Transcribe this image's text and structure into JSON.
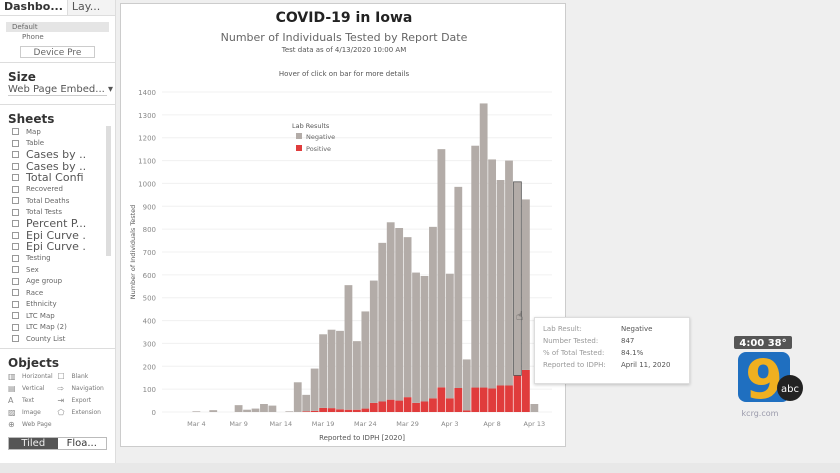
{
  "left_panel": {
    "tabs": [
      "Dashbo...",
      "Lay..."
    ],
    "devices": [
      "Default",
      "Phone"
    ],
    "device_preview_button": "Device Pre",
    "size_heading": "Size",
    "size_value": "Web Page Embed...",
    "sheets_heading": "Sheets",
    "sheets": [
      {
        "label": "Map",
        "big": false
      },
      {
        "label": "Table",
        "big": false
      },
      {
        "label": "Cases by ..",
        "big": true
      },
      {
        "label": "Cases by ..",
        "big": true
      },
      {
        "label": "Total Confi",
        "big": true
      },
      {
        "label": "Recovered",
        "big": false
      },
      {
        "label": "Total Deaths",
        "big": false
      },
      {
        "label": "Total Tests",
        "big": false
      },
      {
        "label": "Percent P...",
        "big": true
      },
      {
        "label": "Epi Curve .",
        "big": true
      },
      {
        "label": "Epi Curve .",
        "big": true
      },
      {
        "label": "Testing",
        "big": false
      },
      {
        "label": "Sex",
        "big": false
      },
      {
        "label": "Age group",
        "big": false
      },
      {
        "label": "Race",
        "big": false
      },
      {
        "label": "Ethnicity",
        "big": false
      },
      {
        "label": "LTC Map",
        "big": false
      },
      {
        "label": "LTC Map (2)",
        "big": false
      },
      {
        "label": "County List",
        "big": false
      }
    ],
    "objects_heading": "Objects",
    "objects": [
      {
        "label": "Horizontal",
        "icon": "▥"
      },
      {
        "label": "Blank",
        "icon": "☐"
      },
      {
        "label": "Vertical",
        "icon": "▤"
      },
      {
        "label": "Navigation",
        "icon": "⇨"
      },
      {
        "label": "Text",
        "icon": "A"
      },
      {
        "label": "Export",
        "icon": "⇥"
      },
      {
        "label": "Image",
        "icon": "▨"
      },
      {
        "label": "Extension",
        "icon": "⬠"
      },
      {
        "label": "Web Page",
        "icon": "⊕"
      }
    ],
    "layout_toggle": [
      "Tiled",
      "Floa..."
    ]
  },
  "dashboard": {
    "title": "COVID-19 in Iowa",
    "subtitle": "Number of Individuals Tested by Report Date",
    "as_of": "Test data as of 4/13/2020 10:00 AM",
    "hint": "Hover of click on bar for more details"
  },
  "tooltip": {
    "rows": [
      [
        "Lab Result:",
        "Negative"
      ],
      [
        "Number Tested:",
        "847"
      ],
      [
        "% of Total Tested:",
        "84.1%"
      ],
      [
        "Reported to IDPH:",
        "April 11, 2020"
      ]
    ]
  },
  "broadcast": {
    "time": "4:00",
    "temp": "38°",
    "logo_text": "kcrg.com",
    "network": "abc"
  },
  "chart_data": {
    "type": "bar",
    "stacked": true,
    "xlabel": "Reported to IDPH [2020]",
    "ylabel": "Number of Individuals Tested",
    "ylim": [
      0,
      1400
    ],
    "yticks": [
      0,
      100,
      200,
      300,
      400,
      500,
      600,
      700,
      800,
      900,
      1000,
      1100,
      1200,
      1300,
      1400
    ],
    "xtick_labels": [
      "Mar 4",
      "Mar 9",
      "Mar 14",
      "Mar 19",
      "Mar 24",
      "Mar 29",
      "Apr 3",
      "Apr 8",
      "Apr 13"
    ],
    "xtick_day_index": [
      3,
      8,
      13,
      18,
      23,
      28,
      33,
      38,
      43
    ],
    "grid": "horizontal",
    "legend": {
      "title": "Lab Results",
      "position": "top-left"
    },
    "categories": [
      "Mar 1",
      "Mar 2",
      "Mar 3",
      "Mar 4",
      "Mar 5",
      "Mar 6",
      "Mar 7",
      "Mar 8",
      "Mar 9",
      "Mar 10",
      "Mar 11",
      "Mar 12",
      "Mar 13",
      "Mar 14",
      "Mar 15",
      "Mar 16",
      "Mar 17",
      "Mar 18",
      "Mar 19",
      "Mar 20",
      "Mar 21",
      "Mar 22",
      "Mar 23",
      "Mar 24",
      "Mar 25",
      "Mar 26",
      "Mar 27",
      "Mar 28",
      "Mar 29",
      "Mar 30",
      "Mar 31",
      "Apr 1",
      "Apr 2",
      "Apr 3",
      "Apr 4",
      "Apr 5",
      "Apr 6",
      "Apr 7",
      "Apr 8",
      "Apr 9",
      "Apr 10",
      "Apr 11",
      "Apr 12",
      "Apr 13"
    ],
    "series": [
      {
        "name": "Negative",
        "color": "#b3aca8",
        "values": [
          0,
          0,
          0,
          3,
          0,
          8,
          0,
          0,
          30,
          10,
          15,
          35,
          28,
          0,
          3,
          130,
          72,
          185,
          322,
          343,
          343,
          545,
          300,
          425,
          535,
          694,
          776,
          755,
          700,
          570,
          549,
          750,
          1042,
          545,
          880,
          223,
          1058,
          1243,
          1002,
          899,
          984,
          847,
          746,
          35
        ]
      },
      {
        "name": "Positive",
        "color": "#e03c3c",
        "values": [
          0,
          0,
          0,
          0,
          0,
          0,
          0,
          0,
          0,
          0,
          0,
          0,
          0,
          0,
          0,
          0,
          3,
          5,
          18,
          17,
          12,
          10,
          10,
          15,
          40,
          46,
          54,
          50,
          65,
          40,
          46,
          60,
          108,
          60,
          105,
          7,
          107,
          107,
          103,
          116,
          116,
          160,
          184,
          0
        ]
      }
    ],
    "highlighted": "Apr 11"
  }
}
